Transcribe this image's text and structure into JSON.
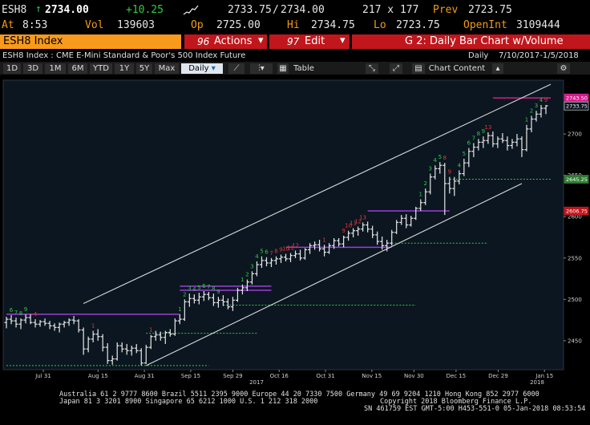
{
  "header": {
    "ticker": "ESH8",
    "last": "2734.00",
    "change": "+10.25",
    "bid": "2733.75",
    "ask": "2734.00",
    "size": "217 x 177",
    "prev_label": "Prev",
    "prev": "2723.75",
    "at_label": "At",
    "time": "8:53",
    "vol_label": "Vol",
    "vol": "139603",
    "op_label": "Op",
    "open": "2725.00",
    "hi_label": "Hi",
    "high": "2734.75",
    "lo_label": "Lo",
    "low": "2723.75",
    "oi_label": "OpenInt",
    "open_interest": "3109444"
  },
  "menubar": {
    "security": "ESH8 Index",
    "actions": "Actions",
    "actions_num": "96",
    "edit": "Edit",
    "edit_num": "97",
    "chart_title": "G 2: Daily Bar Chart w/Volume"
  },
  "info": {
    "description": "ESH8 Index : CME E-Mini Standard & Poor's 500 Index Future",
    "periodicity": "Daily",
    "range": "7/10/2017-1/5/2018"
  },
  "toolbar": {
    "ranges": [
      "1D",
      "3D",
      "1M",
      "6M",
      "YTD",
      "1Y",
      "5Y",
      "Max"
    ],
    "period": "Daily",
    "table": "Table",
    "chart_content": "Chart Content"
  },
  "chart_data": {
    "type": "bar",
    "x_tick_labels": [
      "Jul 31",
      "Aug 15",
      "Aug 31",
      "Sep 15",
      "Sep 29",
      "Oct 16",
      "Oct 31",
      "Nov 15",
      "Nov 30",
      "Dec 15",
      "Dec 29",
      "Jan 15"
    ],
    "year_labels": [
      "2017",
      "2018"
    ],
    "y_tick_labels": [
      "2450",
      "2500",
      "2550",
      "2600",
      "2650",
      "2700"
    ],
    "ylim": [
      2415,
      2765
    ],
    "last_price_label": "2733.75",
    "price_badges": [
      {
        "text": "2743.50",
        "value": 2743.5,
        "color": "#d81b8c"
      },
      {
        "text": "2733.75",
        "value": 2733.75,
        "color": "#bbbbbb"
      },
      {
        "text": "2645.25",
        "value": 2645.25,
        "color": "#2e7d32"
      },
      {
        "text": "2606.75",
        "value": 2606.75,
        "color": "#c1161c"
      }
    ],
    "ohlc": [
      [
        2472,
        2479,
        2465,
        2476
      ],
      [
        2476,
        2481,
        2470,
        2474
      ],
      [
        2474,
        2478,
        2466,
        2470
      ],
      [
        2470,
        2477,
        2464,
        2475
      ],
      [
        2475,
        2482,
        2471,
        2478
      ],
      [
        2478,
        2482,
        2470,
        2472
      ],
      [
        2472,
        2476,
        2466,
        2470
      ],
      [
        2470,
        2475,
        2467,
        2473
      ],
      [
        2473,
        2477,
        2468,
        2471
      ],
      [
        2471,
        2474,
        2464,
        2468
      ],
      [
        2468,
        2471,
        2462,
        2466
      ],
      [
        2466,
        2472,
        2460,
        2470
      ],
      [
        2470,
        2474,
        2466,
        2472
      ],
      [
        2472,
        2477,
        2468,
        2475
      ],
      [
        2475,
        2480,
        2470,
        2474
      ],
      [
        2474,
        2476,
        2460,
        2463
      ],
      [
        2463,
        2466,
        2433,
        2440
      ],
      [
        2440,
        2455,
        2436,
        2452
      ],
      [
        2452,
        2462,
        2448,
        2458
      ],
      [
        2458,
        2464,
        2450,
        2455
      ],
      [
        2455,
        2458,
        2437,
        2442
      ],
      [
        2442,
        2447,
        2422,
        2426
      ],
      [
        2426,
        2432,
        2421,
        2428
      ],
      [
        2428,
        2448,
        2426,
        2444
      ],
      [
        2444,
        2448,
        2436,
        2440
      ],
      [
        2440,
        2446,
        2433,
        2438
      ],
      [
        2438,
        2444,
        2432,
        2441
      ],
      [
        2441,
        2446,
        2435,
        2438
      ],
      [
        2438,
        2441,
        2420,
        2423
      ],
      [
        2423,
        2445,
        2422,
        2442
      ],
      [
        2442,
        2457,
        2440,
        2455
      ],
      [
        2455,
        2462,
        2450,
        2457
      ],
      [
        2457,
        2461,
        2450,
        2454
      ],
      [
        2454,
        2462,
        2446,
        2460
      ],
      [
        2460,
        2464,
        2455,
        2458
      ],
      [
        2458,
        2477,
        2456,
        2474
      ],
      [
        2474,
        2482,
        2470,
        2476
      ],
      [
        2476,
        2500,
        2474,
        2497
      ],
      [
        2497,
        2507,
        2491,
        2501
      ],
      [
        2501,
        2506,
        2495,
        2499
      ],
      [
        2499,
        2508,
        2494,
        2503
      ],
      [
        2503,
        2510,
        2498,
        2506
      ],
      [
        2506,
        2509,
        2499,
        2502
      ],
      [
        2502,
        2507,
        2492,
        2496
      ],
      [
        2496,
        2503,
        2490,
        2499
      ],
      [
        2499,
        2505,
        2492,
        2497
      ],
      [
        2497,
        2501,
        2488,
        2491
      ],
      [
        2491,
        2503,
        2486,
        2499
      ],
      [
        2499,
        2514,
        2497,
        2511
      ],
      [
        2511,
        2518,
        2506,
        2514
      ],
      [
        2514,
        2524,
        2510,
        2521
      ],
      [
        2521,
        2534,
        2518,
        2531
      ],
      [
        2531,
        2546,
        2528,
        2542
      ],
      [
        2542,
        2552,
        2538,
        2547
      ],
      [
        2547,
        2551,
        2540,
        2544
      ],
      [
        2544,
        2550,
        2539,
        2547
      ],
      [
        2547,
        2552,
        2542,
        2549
      ],
      [
        2549,
        2554,
        2544,
        2551
      ],
      [
        2551,
        2555,
        2546,
        2549
      ],
      [
        2549,
        2556,
        2545,
        2553
      ],
      [
        2553,
        2559,
        2550,
        2555
      ],
      [
        2555,
        2560,
        2547,
        2550
      ],
      [
        2550,
        2562,
        2548,
        2560
      ],
      [
        2560,
        2568,
        2555,
        2565
      ],
      [
        2565,
        2570,
        2560,
        2566
      ],
      [
        2566,
        2572,
        2558,
        2561
      ],
      [
        2561,
        2566,
        2552,
        2557
      ],
      [
        2557,
        2568,
        2555,
        2565
      ],
      [
        2565,
        2574,
        2561,
        2571
      ],
      [
        2571,
        2574,
        2564,
        2567
      ],
      [
        2567,
        2577,
        2563,
        2575
      ],
      [
        2575,
        2583,
        2571,
        2580
      ],
      [
        2580,
        2586,
        2575,
        2583
      ],
      [
        2583,
        2588,
        2577,
        2585
      ],
      [
        2585,
        2593,
        2582,
        2590
      ],
      [
        2590,
        2594,
        2581,
        2585
      ],
      [
        2585,
        2589,
        2574,
        2578
      ],
      [
        2578,
        2582,
        2566,
        2570
      ],
      [
        2570,
        2576,
        2560,
        2565
      ],
      [
        2565,
        2572,
        2558,
        2568
      ],
      [
        2568,
        2584,
        2565,
        2581
      ],
      [
        2581,
        2596,
        2579,
        2593
      ],
      [
        2593,
        2602,
        2590,
        2598
      ],
      [
        2598,
        2603,
        2586,
        2590
      ],
      [
        2590,
        2601,
        2588,
        2598
      ],
      [
        2598,
        2612,
        2596,
        2610
      ],
      [
        2610,
        2621,
        2607,
        2617
      ],
      [
        2617,
        2634,
        2614,
        2630
      ],
      [
        2630,
        2652,
        2627,
        2648
      ],
      [
        2648,
        2662,
        2645,
        2658
      ],
      [
        2658,
        2666,
        2652,
        2662
      ],
      [
        2662,
        2665,
        2602,
        2640
      ],
      [
        2640,
        2648,
        2628,
        2634
      ],
      [
        2634,
        2648,
        2625,
        2643
      ],
      [
        2643,
        2656,
        2639,
        2652
      ],
      [
        2652,
        2670,
        2649,
        2665
      ],
      [
        2665,
        2683,
        2660,
        2679
      ],
      [
        2679,
        2689,
        2672,
        2684
      ],
      [
        2684,
        2694,
        2680,
        2690
      ],
      [
        2690,
        2697,
        2683,
        2692
      ],
      [
        2692,
        2702,
        2688,
        2698
      ],
      [
        2698,
        2703,
        2684,
        2688
      ],
      [
        2688,
        2697,
        2683,
        2694
      ],
      [
        2694,
        2701,
        2689,
        2692
      ],
      [
        2692,
        2697,
        2680,
        2686
      ],
      [
        2686,
        2694,
        2682,
        2690
      ],
      [
        2690,
        2700,
        2685,
        2694
      ],
      [
        2694,
        2697,
        2672,
        2681
      ],
      [
        2681,
        2711,
        2679,
        2706
      ],
      [
        2706,
        2722,
        2702,
        2718
      ],
      [
        2718,
        2728,
        2715,
        2724
      ],
      [
        2724,
        2735,
        2720,
        2731
      ],
      [
        2731,
        2735,
        2724,
        2734
      ]
    ],
    "trend_lines": [
      {
        "name": "upper channel",
        "from": [
          16,
          2495
        ],
        "to": [
          113,
          2760
        ]
      },
      {
        "name": "lower channel",
        "from": [
          29,
          2420
        ],
        "to": [
          107,
          2640
        ]
      }
    ],
    "horizontal_levels": [
      {
        "value": 2482,
        "from": 0,
        "to": 36,
        "color": "#9b3fd6",
        "dashed": false
      },
      {
        "value": 2516,
        "from": 36,
        "to": 55,
        "color": "#9b3fd6",
        "dashed": false
      },
      {
        "value": 2511,
        "from": 36,
        "to": 55,
        "color": "#9b3fd6",
        "dashed": false
      },
      {
        "value": 2563,
        "from": 58,
        "to": 80,
        "color": "#9b3fd6",
        "dashed": false
      },
      {
        "value": 2607,
        "from": 75,
        "to": 92,
        "color": "#9b3fd6",
        "dashed": false
      },
      {
        "value": 2743.5,
        "from": 101,
        "to": 113,
        "color": "#d81b8c",
        "dashed": false
      },
      {
        "value": 2420,
        "from": 0,
        "to": 42,
        "color": "#2ecc40",
        "dashed": true
      },
      {
        "value": 2459,
        "from": 29,
        "to": 52,
        "color": "#2ecc40",
        "dashed": true
      },
      {
        "value": 2493,
        "from": 45,
        "to": 85,
        "color": "#2ecc40",
        "dashed": true
      },
      {
        "value": 2568,
        "from": 80,
        "to": 100,
        "color": "#2ecc40",
        "dashed": true
      },
      {
        "value": 2645.25,
        "from": 92,
        "to": 113,
        "color": "#2ecc40",
        "dashed": true
      }
    ],
    "count_labels": [
      {
        "i": 1,
        "text": "6",
        "color": "green"
      },
      {
        "i": 2,
        "text": "7",
        "color": "green"
      },
      {
        "i": 3,
        "text": "8",
        "color": "green"
      },
      {
        "i": 4,
        "text": "9",
        "color": "green"
      },
      {
        "i": 6,
        "text": "4",
        "color": "red"
      },
      {
        "i": 18,
        "text": "1",
        "color": "red"
      },
      {
        "i": 30,
        "text": "1",
        "color": "red"
      },
      {
        "i": 36,
        "text": "1",
        "color": "green"
      },
      {
        "i": 37,
        "text": "2",
        "color": "green"
      },
      {
        "i": 38,
        "text": "3",
        "color": "green"
      },
      {
        "i": 39,
        "text": "4",
        "color": "green"
      },
      {
        "i": 40,
        "text": "5",
        "color": "green"
      },
      {
        "i": 41,
        "text": "6",
        "color": "green"
      },
      {
        "i": 42,
        "text": "7",
        "color": "green"
      },
      {
        "i": 43,
        "text": "8",
        "color": "green"
      },
      {
        "i": 44,
        "text": "9",
        "color": "green"
      },
      {
        "i": 49,
        "text": "1",
        "color": "green"
      },
      {
        "i": 50,
        "text": "2",
        "color": "green"
      },
      {
        "i": 51,
        "text": "3",
        "color": "green"
      },
      {
        "i": 52,
        "text": "4",
        "color": "green"
      },
      {
        "i": 53,
        "text": "5",
        "color": "green"
      },
      {
        "i": 54,
        "text": "6",
        "color": "green"
      },
      {
        "i": 55,
        "text": "7",
        "color": "red"
      },
      {
        "i": 56,
        "text": "8",
        "color": "red"
      },
      {
        "i": 57,
        "text": "9",
        "color": "red"
      },
      {
        "i": 58,
        "text": "10",
        "color": "red"
      },
      {
        "i": 59,
        "text": "11",
        "color": "red"
      },
      {
        "i": 60,
        "text": "12",
        "color": "red"
      },
      {
        "i": 66,
        "text": "1",
        "color": "red"
      },
      {
        "i": 70,
        "text": "9",
        "color": "red"
      },
      {
        "i": 71,
        "text": "10",
        "color": "red"
      },
      {
        "i": 72,
        "text": "11",
        "color": "red"
      },
      {
        "i": 73,
        "text": "12",
        "color": "red"
      },
      {
        "i": 74,
        "text": "13",
        "color": "red"
      },
      {
        "i": 86,
        "text": "1",
        "color": "green"
      },
      {
        "i": 87,
        "text": "2",
        "color": "green"
      },
      {
        "i": 88,
        "text": "3",
        "color": "green"
      },
      {
        "i": 89,
        "text": "4",
        "color": "green"
      },
      {
        "i": 90,
        "text": "5",
        "color": "green"
      },
      {
        "i": 91,
        "text": "8",
        "color": "red"
      },
      {
        "i": 92,
        "text": "9",
        "color": "red"
      },
      {
        "i": 94,
        "text": "4",
        "color": "green"
      },
      {
        "i": 95,
        "text": "5",
        "color": "green"
      },
      {
        "i": 96,
        "text": "6",
        "color": "green"
      },
      {
        "i": 97,
        "text": "7",
        "color": "green"
      },
      {
        "i": 98,
        "text": "8",
        "color": "green"
      },
      {
        "i": 99,
        "text": "9",
        "color": "green"
      },
      {
        "i": 100,
        "text": "13",
        "color": "red"
      },
      {
        "i": 108,
        "text": "1",
        "color": "green"
      },
      {
        "i": 109,
        "text": "2",
        "color": "green"
      },
      {
        "i": 110,
        "text": "3",
        "color": "green"
      },
      {
        "i": 111,
        "text": "4",
        "color": "green"
      },
      {
        "i": 112,
        "text": "9",
        "color": "red"
      }
    ],
    "grid": false
  },
  "footer": {
    "line1": "Australia 61 2 9777 8600 Brazil 5511 2395 9000 Europe 44 20 7330 7500 Germany 49 69 9204 1210 Hong Kong 852 2977 6000",
    "line2": "Japan 81 3 3201 8900       Singapore 65 6212 1000       U.S. 1 212 318 2000",
    "line2b": "Copyright 2018 Bloomberg Finance L.P.",
    "line3": "SN 461759 EST  GMT-5:00 H453-551-0 05-Jan-2018 08:53:54"
  }
}
